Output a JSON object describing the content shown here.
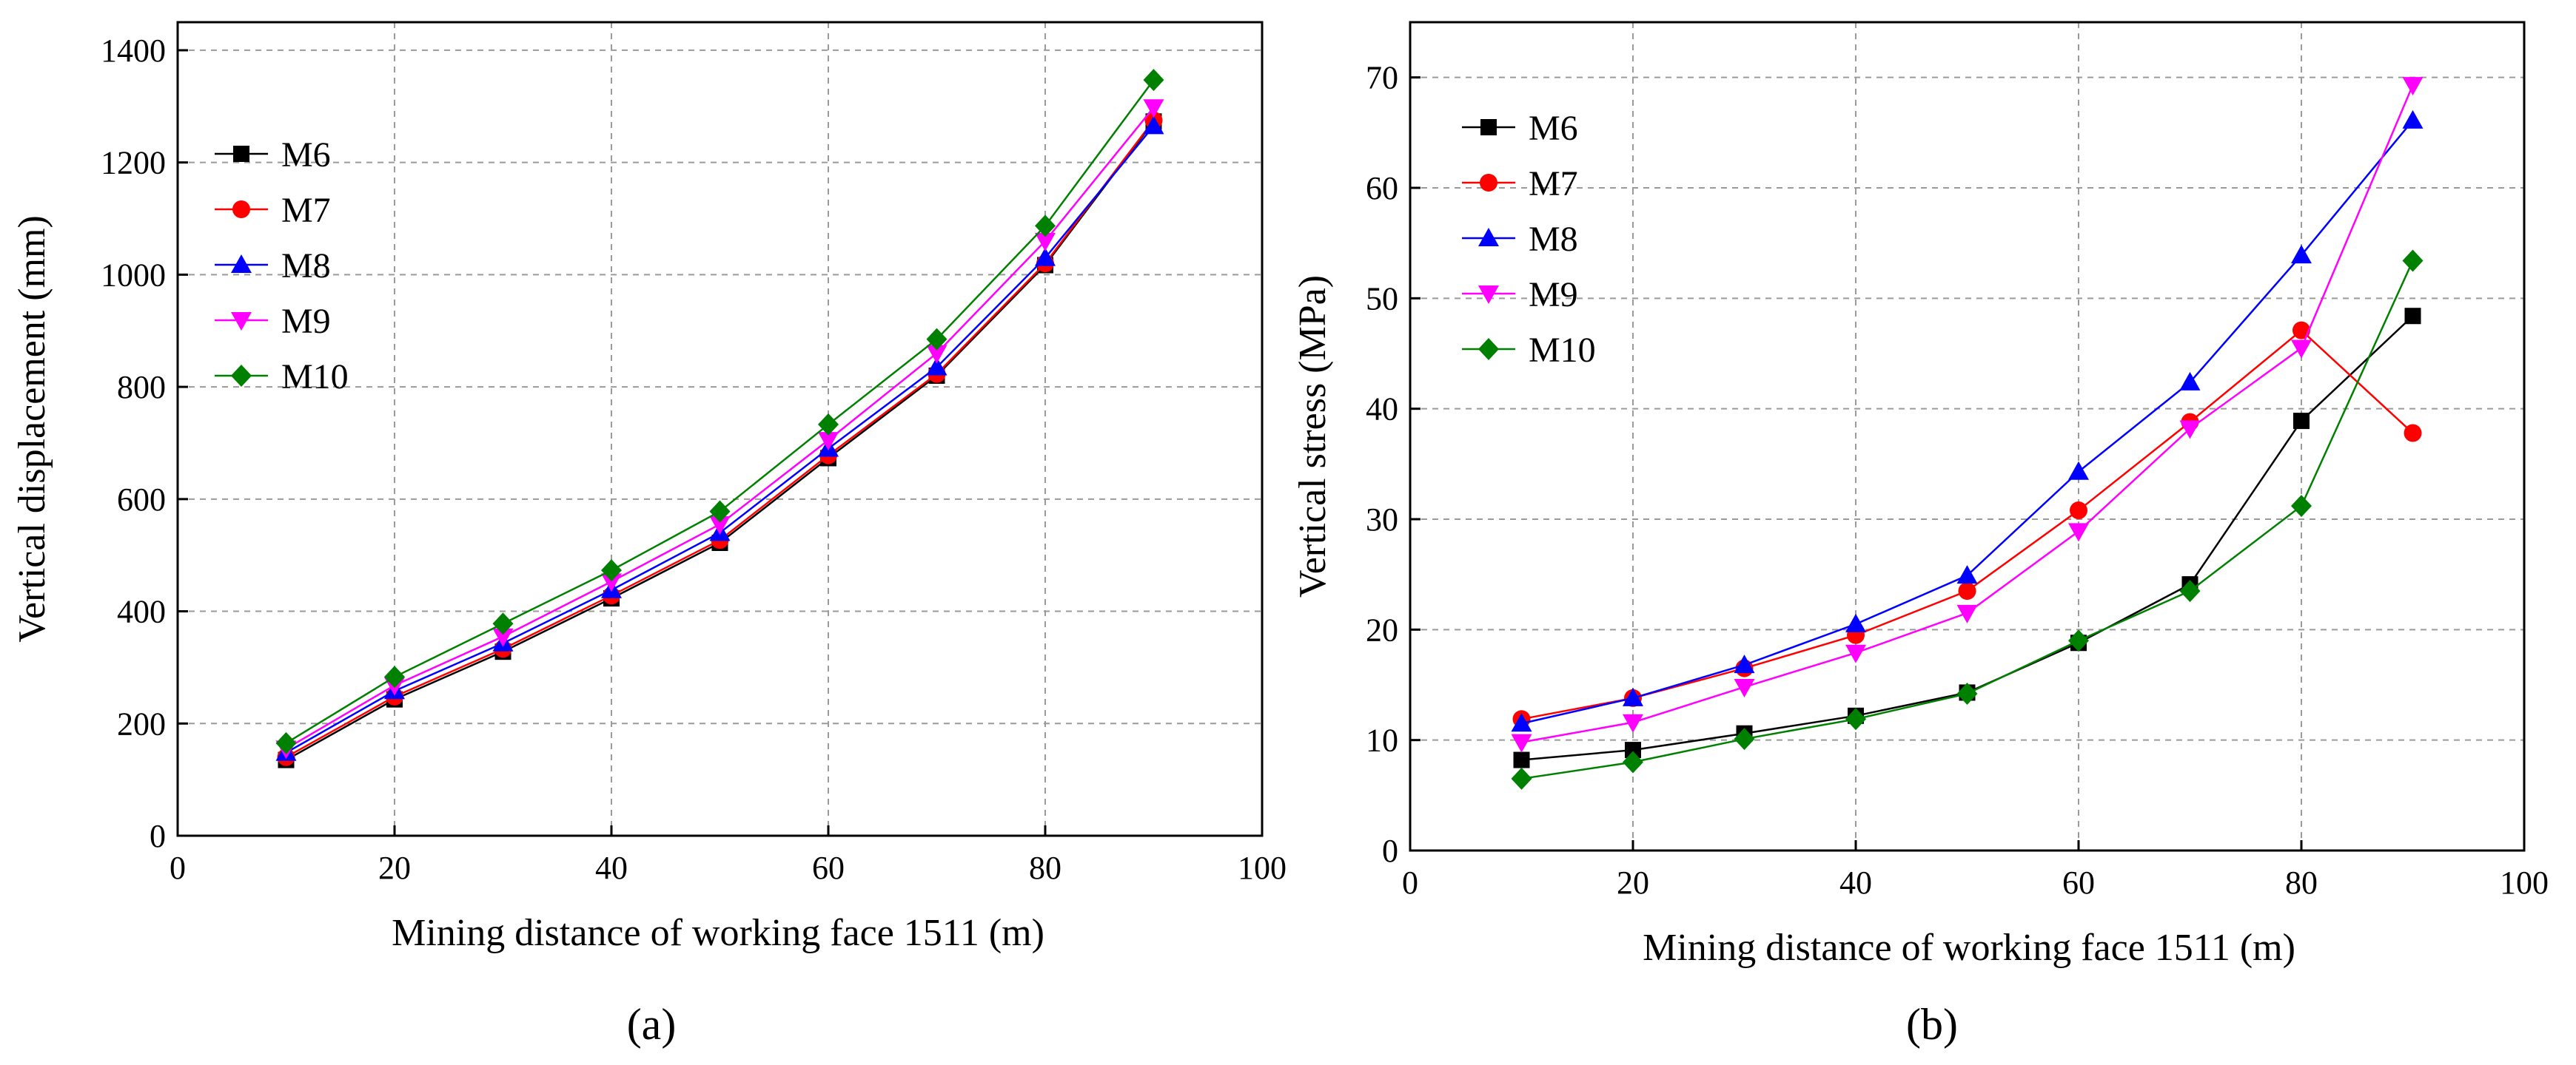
{
  "colors": {
    "M6": "#000000",
    "M7": "#ff0000",
    "M8": "#0000ff",
    "M9": "#ff00ff",
    "M10": "#008000"
  },
  "chart_data": [
    {
      "type": "line",
      "panel_label": "(a)",
      "xlabel": "Mining distance of working face 1511 (m)",
      "ylabel": "Vertical displacement (mm)",
      "xlim": [
        0,
        100
      ],
      "ylim": [
        0,
        1450
      ],
      "xticks": [
        0,
        20,
        40,
        60,
        80,
        100
      ],
      "yticks": [
        0,
        200,
        400,
        600,
        800,
        1000,
        1200,
        1400
      ],
      "grid": true,
      "legend_position": "top-left",
      "x": [
        10,
        20,
        30,
        40,
        50,
        60,
        70,
        80,
        90
      ],
      "series": [
        {
          "name": "M6",
          "marker": "square",
          "values": [
            135,
            243,
            328,
            423,
            522,
            673,
            820,
            1017,
            1273
          ]
        },
        {
          "name": "M7",
          "marker": "circle",
          "values": [
            140,
            248,
            333,
            428,
            527,
            678,
            823,
            1020,
            1275
          ]
        },
        {
          "name": "M8",
          "marker": "triangle-up",
          "values": [
            148,
            258,
            343,
            438,
            540,
            690,
            835,
            1030,
            1265
          ]
        },
        {
          "name": "M9",
          "marker": "triangle-down",
          "values": [
            155,
            268,
            355,
            453,
            555,
            705,
            860,
            1060,
            1298
          ]
        },
        {
          "name": "M10",
          "marker": "diamond",
          "values": [
            165,
            283,
            378,
            473,
            578,
            733,
            885,
            1087,
            1347
          ]
        }
      ]
    },
    {
      "type": "line",
      "panel_label": "(b)",
      "xlabel": "Mining distance of working face 1511 (m)",
      "ylabel": "Vertical stress (MPa)",
      "xlim": [
        0,
        100
      ],
      "ylim": [
        0,
        75
      ],
      "xticks": [
        0,
        20,
        40,
        60,
        80,
        100
      ],
      "yticks": [
        0,
        10,
        20,
        30,
        40,
        50,
        60,
        70
      ],
      "grid": true,
      "legend_position": "top-left",
      "x": [
        10,
        20,
        30,
        40,
        50,
        60,
        70,
        80,
        90
      ],
      "series": [
        {
          "name": "M6",
          "marker": "square",
          "values": [
            8.2,
            9.1,
            10.6,
            12.2,
            14.3,
            18.8,
            24.1,
            38.9,
            48.4
          ]
        },
        {
          "name": "M7",
          "marker": "circle",
          "values": [
            11.9,
            13.8,
            16.5,
            19.5,
            23.5,
            30.8,
            38.8,
            47.1,
            37.8
          ]
        },
        {
          "name": "M8",
          "marker": "triangle-up",
          "values": [
            11.5,
            13.8,
            16.8,
            20.5,
            24.9,
            34.3,
            42.4,
            53.9,
            66.1
          ]
        },
        {
          "name": "M9",
          "marker": "triangle-down",
          "values": [
            9.8,
            11.6,
            14.8,
            17.9,
            21.5,
            28.9,
            38.2,
            45.5,
            69.3
          ]
        },
        {
          "name": "M10",
          "marker": "diamond",
          "values": [
            6.5,
            8.0,
            10.1,
            11.9,
            14.2,
            19.0,
            23.5,
            31.2,
            53.4
          ]
        }
      ]
    }
  ]
}
